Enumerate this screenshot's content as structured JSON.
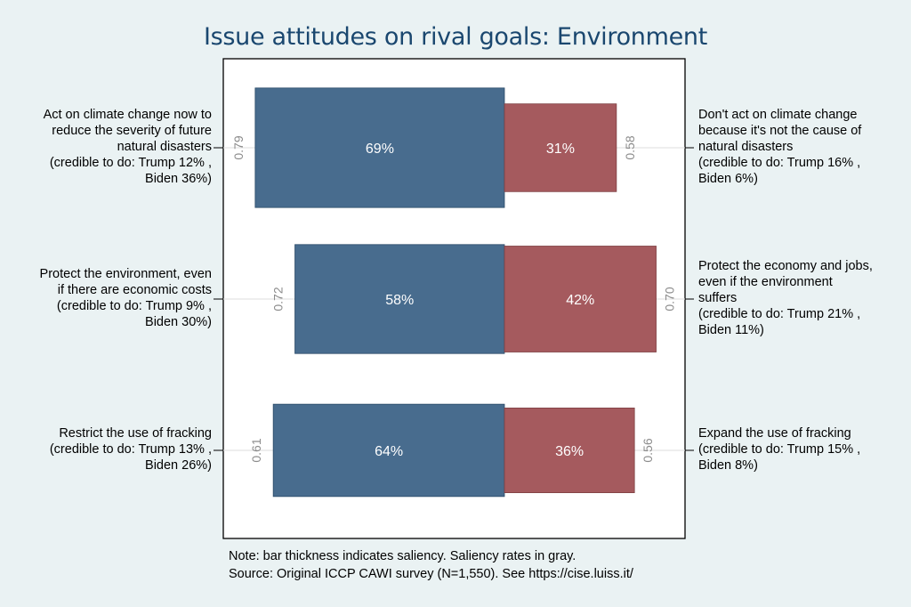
{
  "chart_data": {
    "type": "bar",
    "title": "Issue attitudes on rival goals: Environment",
    "orientation": "horizontal-diverging",
    "xlim": [
      -0.88,
      0.88
    ],
    "grid": false,
    "rows": [
      {
        "left_label_lines": [
          "Act on climate change now to",
          "reduce the severity of future",
          "natural disasters",
          "(credible to do: Trump 12% ,",
          "Biden 36%)"
        ],
        "right_label_lines": [
          "Don't act on climate change",
          "because it's not the cause of",
          "natural disasters",
          "(credible to do: Trump 16% ,",
          "Biden 6%)"
        ],
        "left_value": 69,
        "left_label": "69%",
        "right_value": 31,
        "right_label": "31%",
        "left_saliency": 0.79,
        "left_saliency_label": "0.79",
        "right_saliency": 0.58,
        "right_saliency_label": "0.58"
      },
      {
        "left_label_lines": [
          "Protect the environment, even",
          "if there are economic costs",
          "(credible to do: Trump 9% ,",
          "Biden 30%)"
        ],
        "right_label_lines": [
          "Protect the economy and jobs,",
          "even if the environment",
          "suffers",
          "(credible to do: Trump 21% ,",
          "Biden 11%)"
        ],
        "left_value": 58,
        "left_label": "58%",
        "right_value": 42,
        "right_label": "42%",
        "left_saliency": 0.72,
        "left_saliency_label": "0.72",
        "right_saliency": 0.7,
        "right_saliency_label": "0.70"
      },
      {
        "left_label_lines": [
          "Restrict the use of fracking",
          "(credible to do: Trump 13% ,",
          "Biden 26%)"
        ],
        "right_label_lines": [
          "Expand the use of fracking",
          "(credible to do: Trump 15% ,",
          "Biden 8%)"
        ],
        "left_value": 64,
        "left_label": "64%",
        "right_value": 36,
        "right_label": "36%",
        "left_saliency": 0.61,
        "left_saliency_label": "0.61",
        "right_saliency": 0.56,
        "right_saliency_label": "0.56"
      }
    ],
    "colors": {
      "left_bar": "#486c8e",
      "right_bar": "#a55a5e",
      "saliency_text": "#8c8c8c",
      "title": "#1a476f",
      "background": "#eaf2f3",
      "plot_background": "#ffffff"
    }
  },
  "note_lines": [
    "Note: bar thickness indicates saliency. Saliency rates in gray.",
    "Source: Original ICCP CAWI survey (N=1,550). See https://cise.luiss.it/"
  ]
}
